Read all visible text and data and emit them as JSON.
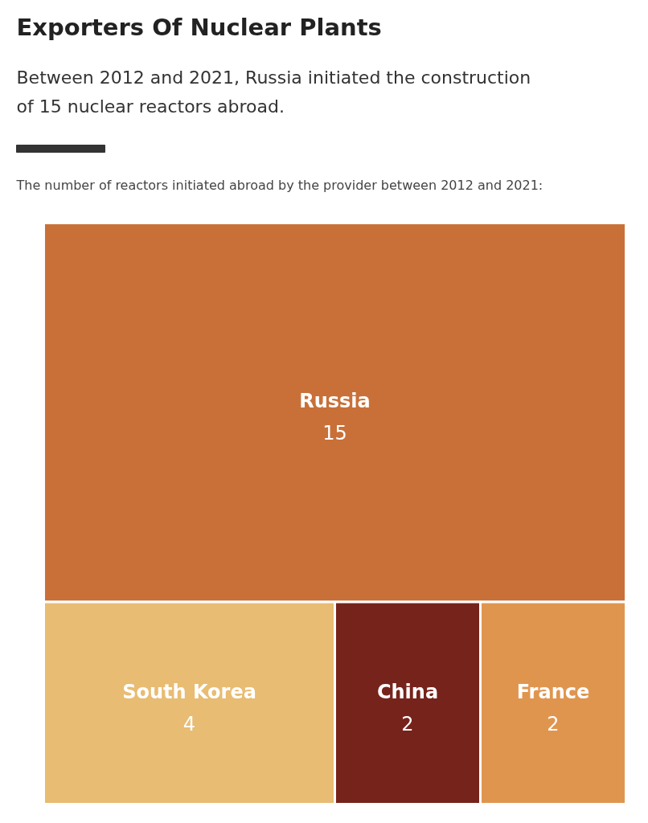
{
  "chart_data": {
    "type": "other",
    "title": "Exporters Of Nuclear Plants",
    "subtitle": "Between 2012 and 2021, Russia initiated the construction\nof 15 nuclear reactors abroad.",
    "annotations": [
      "The number of reactors initiated abroad by the provider between 2012 and 2021:"
    ],
    "categories": [
      "Russia",
      "South Korea",
      "China",
      "France"
    ],
    "values": [
      15,
      4,
      2,
      2
    ],
    "data_labels": true,
    "colors": [
      "#c97038",
      "#e8bc72",
      "#76231b",
      "#e0954f"
    ]
  }
}
